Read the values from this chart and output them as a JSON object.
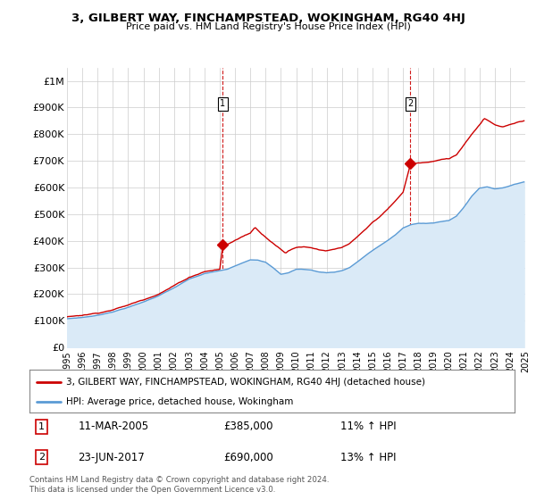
{
  "title": "3, GILBERT WAY, FINCHAMPSTEAD, WOKINGHAM, RG40 4HJ",
  "subtitle": "Price paid vs. HM Land Registry's House Price Index (HPI)",
  "property_label": "3, GILBERT WAY, FINCHAMPSTEAD, WOKINGHAM, RG40 4HJ (detached house)",
  "hpi_label": "HPI: Average price, detached house, Wokingham",
  "sale1_date": "11-MAR-2005",
  "sale1_price": 385000,
  "sale1_hpi_pct": "11% ↑ HPI",
  "sale2_date": "23-JUN-2017",
  "sale2_price": 690000,
  "sale2_hpi_pct": "13% ↑ HPI",
  "footnote": "Contains HM Land Registry data © Crown copyright and database right 2024.\nThis data is licensed under the Open Government Licence v3.0.",
  "property_color": "#cc0000",
  "hpi_color": "#5b9bd5",
  "hpi_fill_color": "#daeaf7",
  "background_color": "#ffffff",
  "grid_color": "#cccccc",
  "dashed_line_color": "#cc0000",
  "ylim_min": 0,
  "ylim_max": 1050000,
  "sale1_x": 2005.19,
  "sale2_x": 2017.46,
  "yticks": [
    0,
    100000,
    200000,
    300000,
    400000,
    500000,
    600000,
    700000,
    800000,
    900000,
    1000000
  ],
  "ytick_labels": [
    "£0",
    "£100K",
    "£200K",
    "£300K",
    "£400K",
    "£500K",
    "£600K",
    "£700K",
    "£800K",
    "£900K",
    "£1M"
  ],
  "xticks": [
    1995,
    1996,
    1997,
    1998,
    1999,
    2000,
    2001,
    2002,
    2003,
    2004,
    2005,
    2006,
    2007,
    2008,
    2009,
    2010,
    2011,
    2012,
    2013,
    2014,
    2015,
    2016,
    2017,
    2018,
    2019,
    2020,
    2021,
    2022,
    2023,
    2024,
    2025
  ]
}
